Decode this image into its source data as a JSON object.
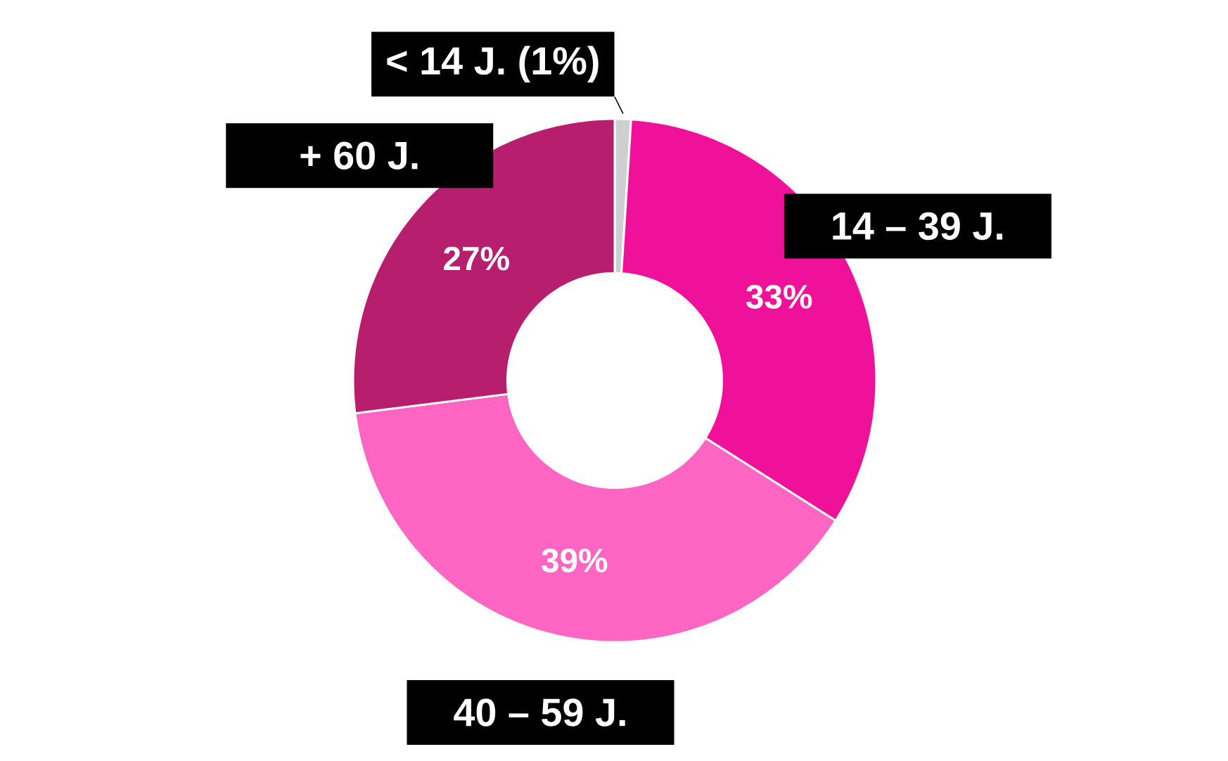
{
  "chart_data": {
    "type": "donut",
    "categories": [
      "< 14 J. (1%)",
      "14 – 39 J.",
      "40 – 59 J.",
      "+ 60 J."
    ],
    "values": [
      1,
      33,
      39,
      27
    ],
    "colors": [
      "#cfcfcf",
      "#f0119a",
      "#ff66c4",
      "#b81e6e"
    ],
    "value_labels": [
      null,
      "33%",
      "39%",
      "27%"
    ]
  }
}
